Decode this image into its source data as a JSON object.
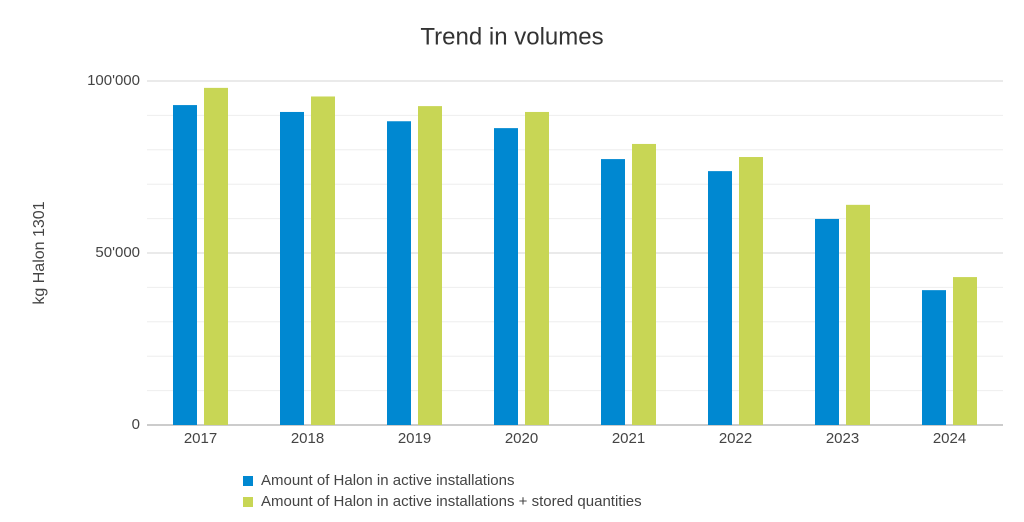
{
  "chart_data": {
    "type": "bar",
    "title": "Trend in volumes",
    "y_label": "kg Halon 1301",
    "categories": [
      "2017",
      "2018",
      "2019",
      "2020",
      "2021",
      "2022",
      "2023",
      "2024"
    ],
    "series": [
      {
        "name": "Amount of Halon in active installations",
        "color": "#0088d1",
        "values": [
          93000,
          91000,
          88300,
          86300,
          77300,
          73800,
          59900,
          39200
        ]
      },
      {
        "name": "Amount of Halon in active installations + stored quantities",
        "color": "#c8d655",
        "values": [
          98000,
          95500,
          92700,
          91000,
          81700,
          77900,
          64000,
          43000
        ]
      }
    ],
    "ylim": [
      0,
      100000
    ],
    "yticks": [
      {
        "value": 0,
        "label": "0"
      },
      {
        "value": 50000,
        "label": "50'000"
      },
      {
        "value": 100000,
        "label": "100'000"
      }
    ],
    "minor_gridlines": [
      10000,
      20000,
      30000,
      40000,
      60000,
      70000,
      80000,
      90000
    ],
    "grid": true
  }
}
